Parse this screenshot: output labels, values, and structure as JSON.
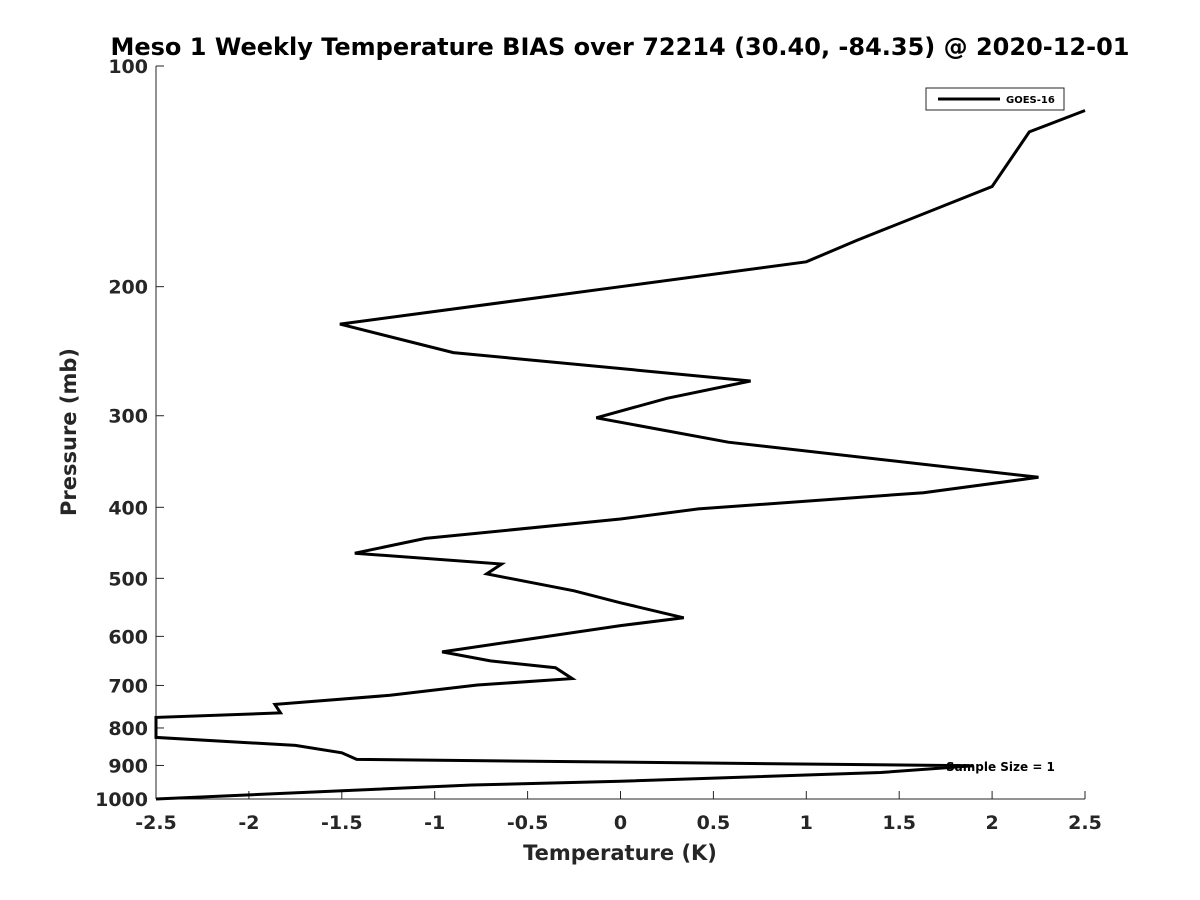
{
  "chart_data": {
    "type": "line",
    "title": "Meso 1 Weekly Temperature BIAS over 72214 (30.40, -84.35) @ 2020-12-01",
    "xlabel": "Temperature (K)",
    "ylabel": "Pressure (mb)",
    "xlim": [
      -2.5,
      2.5
    ],
    "ylim": [
      100,
      1000
    ],
    "yscale": "log",
    "yreversed": true,
    "grid": false,
    "x_ticks": [
      -2.5,
      -2,
      -1.5,
      -1,
      -0.5,
      0,
      0.5,
      1,
      1.5,
      2,
      2.5
    ],
    "x_tick_labels": [
      "-2.5",
      "-2",
      "-1.5",
      "-1",
      "-0.5",
      "0",
      "0.5",
      "1",
      "1.5",
      "2",
      "2.5"
    ],
    "y_ticks": [
      100,
      200,
      300,
      400,
      500,
      600,
      700,
      800,
      900,
      1000
    ],
    "y_tick_labels": [
      "100",
      "200",
      "300",
      "400",
      "500",
      "600",
      "700",
      "800",
      "900",
      "1000"
    ],
    "legend": {
      "placement": "top-right",
      "entries": [
        "GOES-16"
      ]
    },
    "annotation": "Sample Size = 1",
    "series": [
      {
        "name": "GOES-16",
        "color": "#000000",
        "points": [
          [
            2.5,
            115
          ],
          [
            2.2,
            123
          ],
          [
            2.0,
            146
          ],
          [
            1.27,
            173
          ],
          [
            1.0,
            185
          ],
          [
            0.0,
            200
          ],
          [
            -1.51,
            225
          ],
          [
            -0.9,
            246
          ],
          [
            0.7,
            269
          ],
          [
            0.25,
            284
          ],
          [
            -0.13,
            302
          ],
          [
            0.58,
            326
          ],
          [
            2.25,
            364
          ],
          [
            1.63,
            382
          ],
          [
            0.42,
            402
          ],
          [
            0.0,
            415
          ],
          [
            -1.05,
            441
          ],
          [
            -1.43,
            462
          ],
          [
            -0.64,
            478
          ],
          [
            -0.72,
            493
          ],
          [
            -0.25,
            520
          ],
          [
            0.0,
            540
          ],
          [
            0.34,
            566
          ],
          [
            0.0,
            580
          ],
          [
            -0.96,
            630
          ],
          [
            -0.7,
            648
          ],
          [
            -0.35,
            662
          ],
          [
            -0.26,
            685
          ],
          [
            -0.77,
            699
          ],
          [
            -1.24,
            722
          ],
          [
            -1.86,
            743
          ],
          [
            -1.83,
            763
          ],
          [
            -2.5,
            774
          ],
          [
            -2.5,
            824
          ],
          [
            -1.75,
            845
          ],
          [
            -1.5,
            865
          ],
          [
            -1.42,
            883
          ],
          [
            1.9,
            901
          ],
          [
            1.4,
            920
          ],
          [
            0.0,
            946
          ],
          [
            -0.8,
            957
          ],
          [
            -2.5,
            1000
          ]
        ]
      }
    ]
  }
}
